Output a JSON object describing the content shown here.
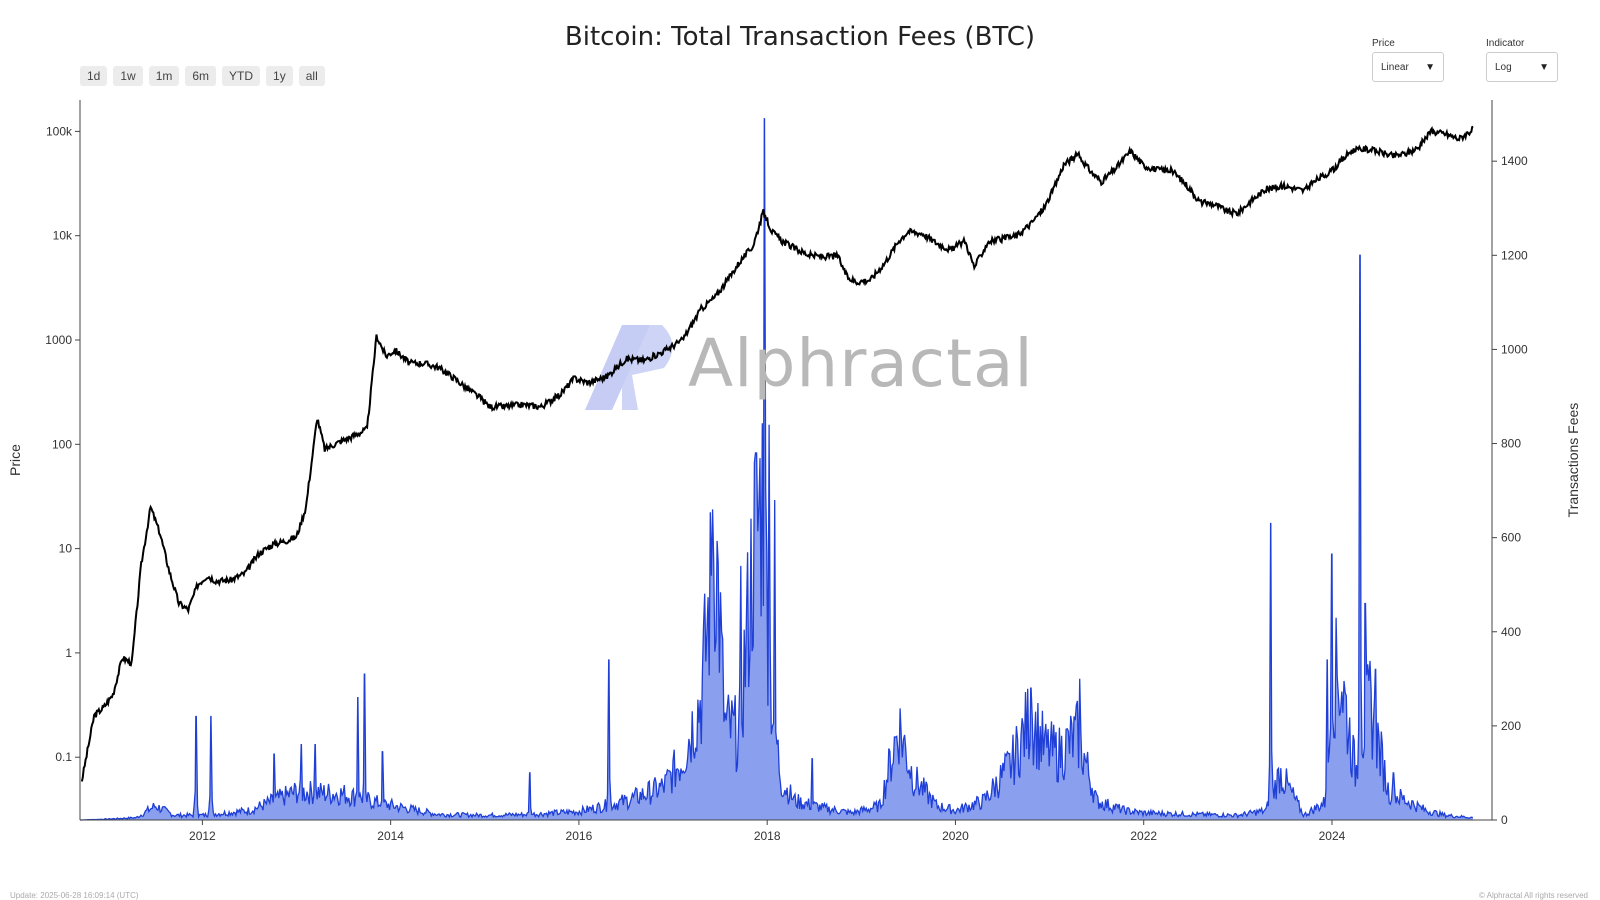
{
  "header": {
    "title": "Bitcoin: Total Transaction Fees (BTC)"
  },
  "range_buttons": [
    "1d",
    "1w",
    "1m",
    "6m",
    "YTD",
    "1y",
    "all"
  ],
  "controls": {
    "price": {
      "label": "Price",
      "value": "Linear"
    },
    "indicator": {
      "label": "Indicator",
      "value": "Log"
    }
  },
  "watermark": {
    "text": "Alphractal"
  },
  "footer": {
    "update": "Update: 2025-06-28 16:09:14 (UTC)",
    "copyright": "© Alphractal All rights reserved"
  },
  "colors": {
    "price_line": "#000000",
    "fees_line": "#1f3fd6",
    "fees_fill": "#8aa0ee",
    "watermark_logo": "#c6ccf3"
  },
  "chart_data": {
    "type": "line",
    "x_range": [
      2010.7,
      2025.7
    ],
    "x_ticks": [
      2012,
      2014,
      2016,
      2018,
      2020,
      2022,
      2024
    ],
    "x_tick_labels": [
      "2012",
      "2014",
      "2016",
      "2018",
      "2020",
      "2022",
      "2024"
    ],
    "y_left": {
      "label": "Price",
      "scale": "log",
      "range": [
        0.025,
        200000
      ],
      "ticks": [
        0.1,
        1,
        10,
        100,
        1000,
        10000,
        100000
      ],
      "tick_labels": [
        "0.1",
        "1",
        "10",
        "100",
        "1000",
        "10k",
        "100k"
      ]
    },
    "y_right": {
      "label": "Transactions Fees",
      "scale": "linear",
      "range": [
        0,
        1530
      ],
      "ticks": [
        0,
        200,
        400,
        600,
        800,
        1000,
        1200,
        1400
      ],
      "tick_labels": [
        "0",
        "200",
        "400",
        "600",
        "800",
        "1000",
        "1200",
        "1400"
      ]
    },
    "series": [
      {
        "axis": "left",
        "x": [
          2010.72,
          2010.85,
          2010.95,
          2011.05,
          2011.15,
          2011.25,
          2011.35,
          2011.45,
          2011.55,
          2011.65,
          2011.75,
          2011.85,
          2011.95,
          2012.05,
          2012.15,
          2012.3,
          2012.45,
          2012.6,
          2012.75,
          2012.9,
          2013.0,
          2013.1,
          2013.22,
          2013.3,
          2013.4,
          2013.5,
          2013.6,
          2013.75,
          2013.85,
          2013.95,
          2014.05,
          2014.2,
          2014.35,
          2014.5,
          2014.65,
          2014.8,
          2014.95,
          2015.05,
          2015.2,
          2015.4,
          2015.6,
          2015.8,
          2015.95,
          2016.1,
          2016.3,
          2016.5,
          2016.7,
          2016.9,
          2017.1,
          2017.3,
          2017.45,
          2017.6,
          2017.7,
          2017.85,
          2017.96,
          2018.05,
          2018.15,
          2018.3,
          2018.45,
          2018.6,
          2018.75,
          2018.85,
          2018.95,
          2019.1,
          2019.25,
          2019.4,
          2019.5,
          2019.65,
          2019.8,
          2019.95,
          2020.1,
          2020.2,
          2020.35,
          2020.5,
          2020.65,
          2020.8,
          2020.95,
          2021.05,
          2021.15,
          2021.3,
          2021.45,
          2021.55,
          2021.7,
          2021.86,
          2022.0,
          2022.15,
          2022.3,
          2022.45,
          2022.6,
          2022.75,
          2022.9,
          2023.0,
          2023.15,
          2023.3,
          2023.5,
          2023.7,
          2023.85,
          2024.0,
          2024.2,
          2024.35,
          2024.5,
          2024.65,
          2024.8,
          2024.92,
          2025.05,
          2025.2,
          2025.35,
          2025.5
        ],
        "y": [
          0.06,
          0.25,
          0.3,
          0.4,
          0.9,
          0.8,
          7,
          25,
          14,
          6,
          3,
          2.6,
          4.5,
          5.5,
          4.9,
          5,
          5.8,
          9,
          11,
          12,
          13,
          25,
          180,
          90,
          100,
          110,
          120,
          140,
          1100,
          700,
          800,
          600,
          600,
          550,
          450,
          350,
          280,
          230,
          230,
          240,
          230,
          300,
          430,
          390,
          450,
          660,
          640,
          780,
          1000,
          2000,
          2600,
          4000,
          5500,
          8000,
          17000,
          11000,
          9000,
          7500,
          6500,
          6300,
          6400,
          4000,
          3600,
          3800,
          5500,
          9000,
          11000,
          10500,
          8500,
          7300,
          9000,
          5000,
          8800,
          9300,
          10000,
          13000,
          19000,
          29000,
          48000,
          60000,
          40000,
          33000,
          44000,
          65000,
          47000,
          43000,
          42000,
          31000,
          21000,
          20000,
          17000,
          16500,
          22000,
          28000,
          30000,
          27000,
          35000,
          42000,
          65000,
          68000,
          64000,
          58000,
          62000,
          70000,
          100000,
          95000,
          85000,
          105000
        ]
      },
      {
        "axis": "right",
        "x": [
          2010.7,
          2011.0,
          2011.3,
          2011.5,
          2011.7,
          2012.0,
          2012.5,
          2013.0,
          2013.5,
          2013.9,
          2014.5,
          2015.0,
          2015.5,
          2016.0,
          2016.5,
          2016.9,
          2017.1,
          2017.3,
          2017.45,
          2017.55,
          2017.7,
          2017.85,
          2017.95,
          2018.05,
          2018.15,
          2018.3,
          2018.6,
          2018.9,
          2019.2,
          2019.4,
          2019.55,
          2019.8,
          2020.0,
          2020.3,
          2020.6,
          2020.8,
          2020.95,
          2021.1,
          2021.3,
          2021.5,
          2021.8,
          2022.0,
          2022.5,
          2023.0,
          2023.3,
          2023.45,
          2023.7,
          2023.95,
          2024.0,
          2024.1,
          2024.25,
          2024.4,
          2024.6,
          2024.8,
          2025.0,
          2025.2,
          2025.5
        ],
        "y": [
          0,
          2,
          5,
          30,
          10,
          10,
          20,
          60,
          55,
          35,
          12,
          10,
          12,
          18,
          40,
          70,
          130,
          260,
          600,
          200,
          180,
          560,
          700,
          250,
          80,
          40,
          25,
          15,
          30,
          200,
          90,
          30,
          20,
          40,
          120,
          220,
          150,
          140,
          180,
          40,
          20,
          15,
          12,
          10,
          20,
          100,
          10,
          40,
          300,
          300,
          100,
          250,
          60,
          40,
          20,
          10,
          5
        ],
        "spikes": [
          {
            "x": 2011.93,
            "y": 220
          },
          {
            "x": 2012.09,
            "y": 220
          },
          {
            "x": 2012.76,
            "y": 140
          },
          {
            "x": 2013.05,
            "y": 160
          },
          {
            "x": 2013.2,
            "y": 160
          },
          {
            "x": 2013.65,
            "y": 260
          },
          {
            "x": 2013.72,
            "y": 310
          },
          {
            "x": 2013.91,
            "y": 145
          },
          {
            "x": 2015.48,
            "y": 100
          },
          {
            "x": 2016.32,
            "y": 340
          },
          {
            "x": 2017.42,
            "y": 660
          },
          {
            "x": 2017.72,
            "y": 540
          },
          {
            "x": 2017.88,
            "y": 780
          },
          {
            "x": 2017.97,
            "y": 1490
          },
          {
            "x": 2018.02,
            "y": 840
          },
          {
            "x": 2018.08,
            "y": 680
          },
          {
            "x": 2018.48,
            "y": 130
          },
          {
            "x": 2020.8,
            "y": 280
          },
          {
            "x": 2021.32,
            "y": 300
          },
          {
            "x": 2023.35,
            "y": 630
          },
          {
            "x": 2023.95,
            "y": 340
          },
          {
            "x": 2024.0,
            "y": 565
          },
          {
            "x": 2024.3,
            "y": 1200
          },
          {
            "x": 2024.35,
            "y": 460
          },
          {
            "x": 2024.46,
            "y": 320
          },
          {
            "x": 2024.65,
            "y": 100
          }
        ]
      }
    ]
  }
}
